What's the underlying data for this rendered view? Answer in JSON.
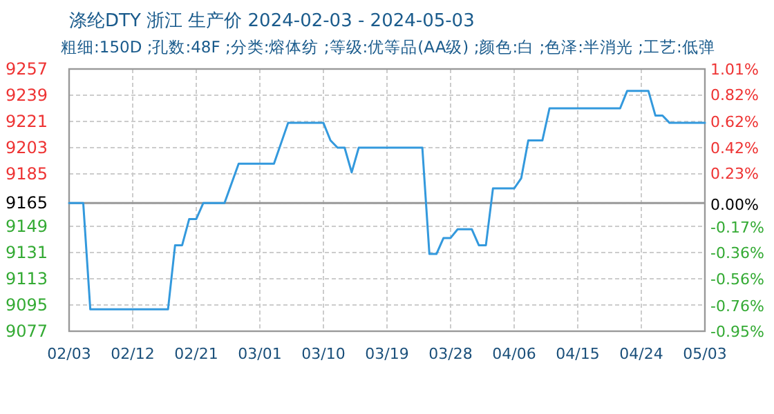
{
  "chart_data": {
    "type": "line",
    "title": "涤纶DTY 浙江 生产价 2024-02-03 - 2024-05-03",
    "subtitle": "粗细:150D ;孔数:48F ;分类:熔体纺 ;等级:优等品(AA级) ;颜色:白 ;色泽:半消光 ;工艺:低弹",
    "x": [
      "2024-02-03",
      "2024-02-05",
      "2024-02-06",
      "2024-02-17",
      "2024-02-18",
      "2024-02-19",
      "2024-02-20",
      "2024-02-21",
      "2024-02-22",
      "2024-02-25",
      "2024-02-27",
      "2024-03-03",
      "2024-03-05",
      "2024-03-10",
      "2024-03-11",
      "2024-03-12",
      "2024-03-13",
      "2024-03-14",
      "2024-03-15",
      "2024-03-24",
      "2024-03-25",
      "2024-03-26",
      "2024-03-27",
      "2024-03-28",
      "2024-03-29",
      "2024-03-31",
      "2024-04-01",
      "2024-04-02",
      "2024-04-03",
      "2024-04-06",
      "2024-04-07",
      "2024-04-08",
      "2024-04-10",
      "2024-04-11",
      "2024-04-21",
      "2024-04-22",
      "2024-04-25",
      "2024-04-26",
      "2024-04-27",
      "2024-04-28",
      "2024-05-03"
    ],
    "series": [
      {
        "color": "#3399dd",
        "values": [
          9165,
          9165,
          9092,
          9092,
          9136,
          9136,
          9154,
          9154,
          9165,
          9165,
          9192,
          9192,
          9220,
          9220,
          9208,
          9203,
          9203,
          9186,
          9203,
          9203,
          9130,
          9130,
          9141,
          9141,
          9147,
          9147,
          9136,
          9136,
          9175,
          9175,
          9182,
          9208,
          9208,
          9230,
          9230,
          9242,
          9242,
          9225,
          9225,
          9220,
          9220
        ]
      }
    ],
    "xlim": [
      "2024-02-03",
      "2024-05-03"
    ],
    "xticks": [
      {
        "value": "2024-02-03",
        "label": "02/03"
      },
      {
        "value": "2024-02-12",
        "label": "02/12"
      },
      {
        "value": "2024-02-21",
        "label": "02/21"
      },
      {
        "value": "2024-03-01",
        "label": "03/01"
      },
      {
        "value": "2024-03-10",
        "label": "03/10"
      },
      {
        "value": "2024-03-19",
        "label": "03/19"
      },
      {
        "value": "2024-03-28",
        "label": "03/28"
      },
      {
        "value": "2024-04-06",
        "label": "04/06"
      },
      {
        "value": "2024-04-15",
        "label": "04/15"
      },
      {
        "value": "2024-04-24",
        "label": "04/24"
      },
      {
        "value": "2024-05-03",
        "label": "05/03"
      }
    ],
    "ylim": [
      9077,
      9257
    ],
    "yticks": [
      9077,
      9095,
      9113,
      9131,
      9149,
      9165,
      9185,
      9203,
      9221,
      9239,
      9257
    ],
    "y2lim": [
      -0.95,
      1.01
    ],
    "y2ticks": [
      {
        "value": -0.95,
        "label": "-0.95%"
      },
      {
        "value": -0.76,
        "label": "-0.76%"
      },
      {
        "value": -0.56,
        "label": "-0.56%"
      },
      {
        "value": -0.36,
        "label": "-0.36%"
      },
      {
        "value": -0.17,
        "label": "-0.17%"
      },
      {
        "value": 0,
        "label": "0.00%"
      },
      {
        "value": 0.23,
        "label": "0.23%"
      },
      {
        "value": 0.42,
        "label": "0.42%"
      },
      {
        "value": 0.62,
        "label": "0.62%"
      },
      {
        "value": 0.82,
        "label": "0.82%"
      },
      {
        "value": 1.01,
        "label": "1.01%"
      }
    ],
    "ref_lines": [
      {
        "axis": "y",
        "value": 9165,
        "color": "#999999"
      }
    ],
    "grid": true,
    "marker": "none",
    "line_style": "solid"
  }
}
